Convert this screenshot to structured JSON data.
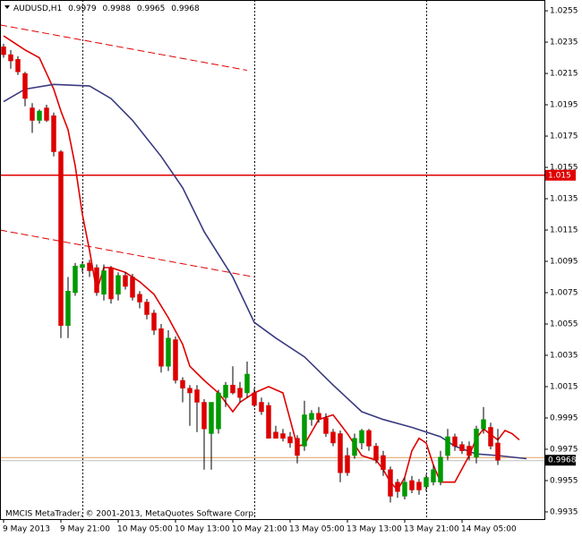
{
  "chart_data": {
    "type": "candlestick",
    "title": "AUDUSD,H1",
    "copyright": "MMCIS MetaTrader, © 2001-2013, MetaQuotes Software Corp.",
    "open": [
      1.0232,
      1.0227,
      1.0224,
      1.0215,
      1.0193,
      1.0185,
      1.0193,
      1.0188,
      1.0165,
      1.0054,
      1.0075,
      1.0091,
      1.0094,
      1.0091,
      1.0074,
      1.0091,
      1.0074,
      1.0086,
      1.0085,
      1.0074,
      1.0069,
      1.0062,
      1.0052,
      1.0028,
      1.0045,
      1.0019,
      1.0014,
      1.0013,
      1.0005,
      0.9985,
      0.9988,
      1.0008,
      1.0016,
      1.0014,
      1.0011,
      1.0011,
      1.0005,
      1.0003,
      0.9986,
      0.9985,
      0.9983,
      0.9982,
      0.9977,
      0.9994,
      0.9998,
      0.9995,
      0.9986,
      0.9985,
      0.9971,
      0.9971,
      0.9979,
      0.9987,
      0.9977,
      0.9971,
      0.9962,
      0.9954,
      0.9945,
      0.9955,
      0.9954,
      0.9951,
      0.9954,
      0.9954,
      0.9971,
      0.9983,
      0.9978,
      0.9977,
      0.997,
      0.9988,
      0.9989,
      0.9979
    ],
    "high": [
      1.0234,
      1.023,
      1.0226,
      1.0216,
      1.0196,
      1.0192,
      1.0195,
      1.019,
      1.0166,
      1.0085,
      1.0094,
      1.0095,
      1.0096,
      1.0093,
      1.0093,
      1.0092,
      1.0088,
      1.0088,
      1.0087,
      1.0076,
      1.0071,
      1.0064,
      1.0055,
      1.0051,
      1.0047,
      1.0021,
      1.0016,
      1.0016,
      1.0007,
      1.0005,
      1.0013,
      1.0018,
      1.0028,
      1.0018,
      1.0031,
      1.0014,
      1.0008,
      1.0005,
      0.999,
      0.9988,
      0.9986,
      0.9984,
      1.0006,
      1.0,
      1.0002,
      0.9998,
      0.9988,
      0.9987,
      0.9976,
      0.9985,
      0.9988,
      0.9988,
      0.9979,
      0.9974,
      0.9964,
      0.9956,
      0.9957,
      0.9958,
      0.9956,
      0.9959,
      0.9965,
      0.9974,
      0.9988,
      0.9985,
      0.998,
      0.998,
      0.999,
      1.0002,
      0.9992,
      0.9988
    ],
    "low": [
      1.0225,
      1.0218,
      1.0214,
      1.0194,
      1.0177,
      1.0183,
      1.0184,
      1.0162,
      1.0046,
      1.0046,
      1.0073,
      1.0088,
      1.0085,
      1.0073,
      1.007,
      1.0068,
      1.007,
      1.0077,
      1.007,
      1.0065,
      1.0058,
      1.0048,
      1.0024,
      1.0025,
      1.0017,
      1.0005,
      0.999,
      0.9986,
      0.9962,
      0.9962,
      0.9985,
      1.0002,
      1.001,
      1.0005,
      1.0008,
      1.0002,
      0.9997,
      0.9982,
      0.9982,
      0.998,
      0.9976,
      0.9966,
      0.9974,
      0.999,
      0.9992,
      0.9983,
      0.9977,
      0.9954,
      0.9958,
      0.9969,
      0.9975,
      0.9974,
      0.9966,
      0.9958,
      0.9941,
      0.9944,
      0.9943,
      0.9947,
      0.9946,
      0.9948,
      0.9952,
      0.9952,
      0.9968,
      0.9974,
      0.9972,
      0.9968,
      0.9966,
      0.9985,
      0.9975,
      0.9965
    ],
    "close": [
      1.0227,
      1.0223,
      1.0216,
      1.0199,
      1.0185,
      1.0191,
      1.0185,
      1.0165,
      1.0054,
      1.0076,
      1.0092,
      1.0093,
      1.0089,
      1.0075,
      1.0089,
      1.0071,
      1.0086,
      1.0079,
      1.0072,
      1.0069,
      1.0061,
      1.0051,
      1.0028,
      1.0046,
      1.0019,
      1.0014,
      1.0011,
      1.0005,
      0.9988,
      1.0005,
      1.0011,
      1.0016,
      1.0011,
      1.0008,
      1.0023,
      1.0003,
      0.9999,
      0.9982,
      0.9982,
      0.9982,
      0.9979,
      0.9971,
      0.9997,
      0.9998,
      0.9994,
      0.9985,
      0.9979,
      0.996,
      0.996,
      0.9982,
      0.9987,
      0.9977,
      0.9968,
      0.9962,
      0.9945,
      0.9948,
      0.9954,
      0.9949,
      0.9949,
      0.9957,
      0.9962,
      0.997,
      0.9983,
      0.9977,
      0.9974,
      0.9971,
      0.9988,
      0.9994,
      0.9977,
      0.9968
    ],
    "up_color": "#009900",
    "down_color": "#dd0000",
    "moving_averages": [
      {
        "color": "#e00000",
        "x": [
          0,
          3,
          5,
          7,
          8,
          9,
          10,
          11,
          12,
          13,
          14,
          15,
          17,
          19,
          21,
          23,
          25,
          26,
          28,
          30,
          32,
          33,
          35,
          37,
          39,
          40,
          41,
          42,
          44,
          46,
          48,
          50,
          52,
          53,
          54,
          55,
          56,
          57,
          58,
          59,
          60,
          61,
          63,
          65,
          66,
          67,
          69,
          70,
          71,
          72
        ],
        "values": [
          1.0239,
          1.023,
          1.0225,
          1.0205,
          1.0191,
          1.0179,
          1.0156,
          1.0125,
          1.0102,
          1.0076,
          1.0091,
          1.0091,
          1.0088,
          1.0082,
          1.0074,
          1.0059,
          1.0042,
          1.0028,
          1.0019,
          1.0011,
          0.9999,
          1.0005,
          1.0011,
          1.0015,
          1.0011,
          0.9994,
          0.9977,
          0.9978,
          0.9994,
          0.9997,
          0.9985,
          0.9971,
          0.9968,
          0.9962,
          0.9954,
          0.9949,
          0.9957,
          0.9974,
          0.9982,
          0.9979,
          0.9965,
          0.9954,
          0.9954,
          0.9971,
          0.9982,
          0.9988,
          0.9981,
          0.9987,
          0.9985,
          0.9981
        ]
      },
      {
        "color": "#3a3a80",
        "x": [
          0,
          3,
          7,
          12,
          15,
          18,
          22,
          25,
          28,
          32,
          35,
          38,
          42,
          46,
          50,
          53,
          57,
          61,
          63,
          66,
          69,
          73
        ],
        "values": [
          1.0197,
          1.0205,
          1.0208,
          1.0207,
          1.0199,
          1.0185,
          1.0162,
          1.0142,
          1.0114,
          1.0085,
          1.0056,
          1.0046,
          1.0034,
          1.0016,
          0.9999,
          0.9994,
          0.9989,
          0.9983,
          0.9977,
          0.9972,
          0.9971,
          0.9969
        ]
      }
    ],
    "trend_lines": [
      {
        "color": "#e00000",
        "x": [
          -0.5,
          34
        ],
        "values": [
          1.0246,
          1.0217
        ]
      },
      {
        "color": "#e00000",
        "x": [
          -0.5,
          35
        ],
        "values": [
          1.0115,
          1.0085
        ]
      }
    ],
    "hline": {
      "value": 1.015,
      "color": "#e00000"
    },
    "bid_color": "#e0a060",
    "day_separators": [
      11,
      35,
      59
    ],
    "xlim": [
      -0.5,
      75.5
    ],
    "ylim": [
      0.99304,
      1.02619
    ],
    "xticks": [
      {
        "value": 0,
        "label": "9 May 2013"
      },
      {
        "value": 8,
        "label": "9 May 21:00"
      },
      {
        "value": 16,
        "label": "10 May 05:00"
      },
      {
        "value": 24,
        "label": "10 May 13:00"
      },
      {
        "value": 32,
        "label": "10 May 21:00"
      },
      {
        "value": 40,
        "label": "13 May 05:00"
      },
      {
        "value": 48,
        "label": "13 May 13:00"
      },
      {
        "value": 56,
        "label": "13 May 21:00"
      },
      {
        "value": 64,
        "label": "14 May 05:00"
      }
    ],
    "yticks": [
      1.0255,
      1.0235,
      1.0215,
      1.0195,
      1.0175,
      1.0155,
      1.0135,
      1.0115,
      1.0095,
      1.0075,
      1.0055,
      1.0035,
      1.0015,
      0.9995,
      0.9975,
      0.9955,
      0.9935
    ]
  }
}
